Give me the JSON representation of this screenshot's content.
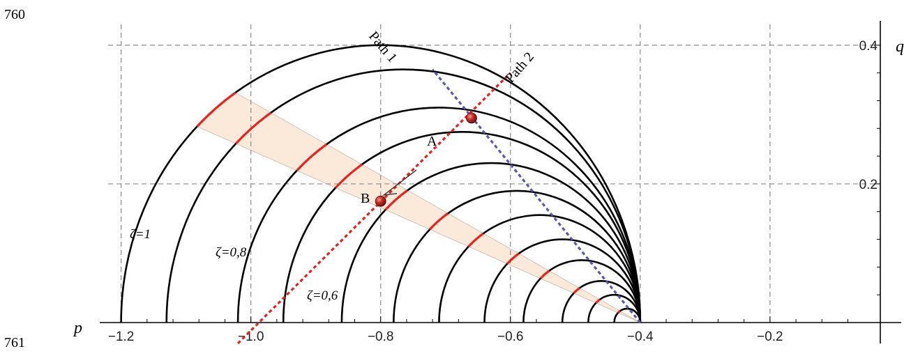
{
  "line_numbers": {
    "top": "760",
    "bottom": "761"
  },
  "chart_data": {
    "type": "line",
    "xlabel": "p",
    "ylabel": "q",
    "xlim": [
      -1.22,
      -0.03
    ],
    "ylim": [
      0,
      0.43
    ],
    "grid": true,
    "x_ticks": [
      {
        "value": -1.2,
        "label": "−1.2"
      },
      {
        "value": -1.0,
        "label": "−1.0"
      },
      {
        "value": -0.8,
        "label": "−0.8"
      },
      {
        "value": -0.6,
        "label": "−0.6"
      },
      {
        "value": -0.4,
        "label": "−0.4"
      },
      {
        "value": -0.2,
        "label": "−0.2"
      }
    ],
    "y_ticks": [
      {
        "value": 0.2,
        "label": "0.2"
      },
      {
        "value": 0.4,
        "label": "0.4"
      }
    ],
    "right_point": -0.4,
    "curves": [
      {
        "left": -1.2,
        "label": "ζ=1"
      },
      {
        "left": -1.13,
        "label": ""
      },
      {
        "left": -1.02,
        "label": "ζ=0,8"
      },
      {
        "left": -0.95,
        "label": ""
      },
      {
        "left": -0.86,
        "label": "ζ=0,6"
      },
      {
        "left": -0.78,
        "label": ""
      },
      {
        "left": -0.71,
        "label": ""
      },
      {
        "left": -0.64,
        "label": ""
      },
      {
        "left": -0.58,
        "label": ""
      },
      {
        "left": -0.52,
        "label": ""
      },
      {
        "left": -0.48,
        "label": ""
      },
      {
        "left": -0.44,
        "label": ""
      }
    ],
    "wedge": {
      "start_angle_deg": 124,
      "end_angle_deg": 135,
      "color": "#fbe9d9"
    },
    "paths": [
      {
        "name": "Path 1",
        "color": "#5a5aa8",
        "from": [
          -0.4,
          0.0
        ],
        "to": [
          -0.72,
          0.365
        ]
      },
      {
        "name": "Path 2",
        "color": "#e8231f",
        "from": [
          -1.02,
          -0.03
        ],
        "to": [
          -0.6,
          0.36
        ]
      }
    ],
    "points": [
      {
        "name": "A",
        "p": -0.66,
        "q": 0.295
      },
      {
        "name": "B",
        "p": -0.8,
        "q": 0.175
      }
    ],
    "annotations": {
      "path1": "Path 1",
      "path2": "Path 2",
      "A": "A",
      "B": "B"
    }
  }
}
